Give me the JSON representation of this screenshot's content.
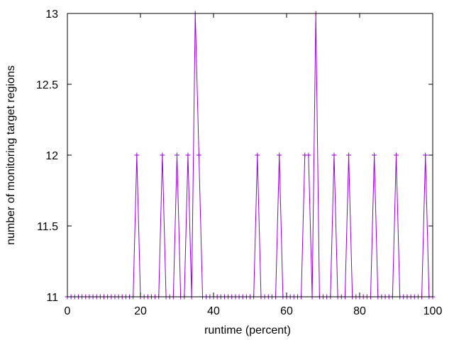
{
  "chart_data": {
    "type": "line",
    "title": "",
    "xlabel": "runtime (percent)",
    "ylabel": "number of monitoring target regions",
    "xlim": [
      0,
      100
    ],
    "ylim": [
      11,
      13
    ],
    "xticks": [
      0,
      20,
      40,
      60,
      80,
      100
    ],
    "yticks": [
      11,
      11.5,
      12,
      12.5,
      13
    ],
    "xtick_labels": [
      "0",
      "20",
      "40",
      "60",
      "80",
      "100"
    ],
    "ytick_labels": [
      "11",
      "11.5",
      "12",
      "12.5",
      "13"
    ],
    "grid": false,
    "legend": "none",
    "marker": "plus",
    "series": [
      {
        "color": "#9400d3",
        "x": [
          0,
          1,
          2,
          3,
          4,
          5,
          6,
          7,
          8,
          9,
          10,
          11,
          12,
          13,
          14,
          15,
          16,
          17,
          18,
          19,
          20,
          21,
          22,
          23,
          24,
          25,
          26,
          27,
          28,
          29,
          30,
          31,
          32,
          33,
          34,
          35,
          36,
          37,
          38,
          39,
          40,
          41,
          42,
          43,
          44,
          45,
          46,
          47,
          48,
          49,
          50,
          51,
          52,
          53,
          54,
          55,
          56,
          57,
          58,
          59,
          60,
          61,
          62,
          63,
          64,
          65,
          66,
          67,
          68,
          69,
          70,
          71,
          72,
          73,
          74,
          75,
          76,
          77,
          78,
          79,
          80,
          81,
          82,
          83,
          84,
          85,
          86,
          87,
          88,
          89,
          90,
          91,
          92,
          93,
          94,
          95,
          96,
          97,
          98,
          99,
          100
        ],
        "y": [
          11,
          11,
          11,
          11,
          11,
          11,
          11,
          11,
          11,
          11,
          11,
          11,
          11,
          11,
          11,
          11,
          11,
          11,
          11,
          12,
          11,
          11,
          11,
          11,
          11,
          11,
          12,
          11,
          11,
          11,
          12,
          11,
          11,
          12,
          11,
          13,
          12,
          11,
          11,
          11,
          11,
          11,
          11,
          11,
          11,
          11,
          11,
          11,
          11,
          11,
          11,
          11,
          12,
          11,
          11,
          11,
          11,
          11,
          12,
          11,
          11,
          11,
          11,
          11,
          11,
          12,
          12,
          11,
          13,
          11,
          11,
          11,
          11,
          12,
          11,
          11,
          11,
          12,
          11,
          11,
          11,
          11,
          11,
          11,
          12,
          11,
          11,
          11,
          11,
          11,
          12,
          11,
          11,
          11,
          11,
          11,
          11,
          11,
          12,
          11,
          11
        ]
      }
    ]
  }
}
